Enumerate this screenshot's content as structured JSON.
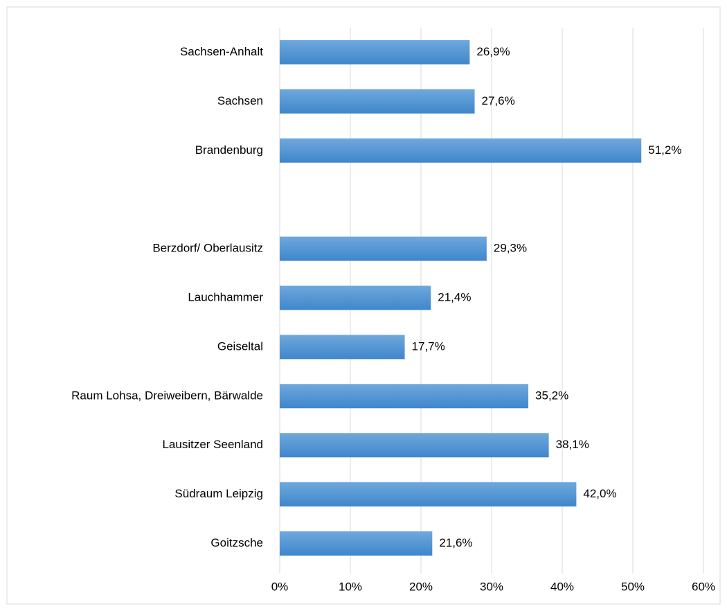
{
  "chart_data": {
    "type": "hbar",
    "categories": [
      "Sachsen-Anhalt",
      "Sachsen",
      "Brandenburg",
      null,
      "Berzdorf/ Oberlausitz",
      "Lauchhammer",
      "Geiseltal",
      "Raum Lohsa, Dreiweibern, Bärwalde",
      "Lausitzer Seenland",
      "Südraum Leipzig",
      "Goitzsche"
    ],
    "values": [
      26.9,
      27.6,
      51.2,
      null,
      29.3,
      21.4,
      17.7,
      35.2,
      38.1,
      42.0,
      21.6
    ],
    "value_labels": [
      "26,9%",
      "27,6%",
      "51,2%",
      null,
      "29,3%",
      "21,4%",
      "17,7%",
      "35,2%",
      "38,1%",
      "42,0%",
      "21,6%"
    ],
    "color": "#5b9bd5",
    "xlim": [
      0,
      60
    ],
    "xticks": [
      {
        "value": 0,
        "label": "0%"
      },
      {
        "value": 10,
        "label": "10%"
      },
      {
        "value": 20,
        "label": "20%"
      },
      {
        "value": 30,
        "label": "30%"
      },
      {
        "value": 40,
        "label": "40%"
      },
      {
        "value": 50,
        "label": "50%"
      },
      {
        "value": 60,
        "label": "60%"
      }
    ],
    "grid": true
  }
}
